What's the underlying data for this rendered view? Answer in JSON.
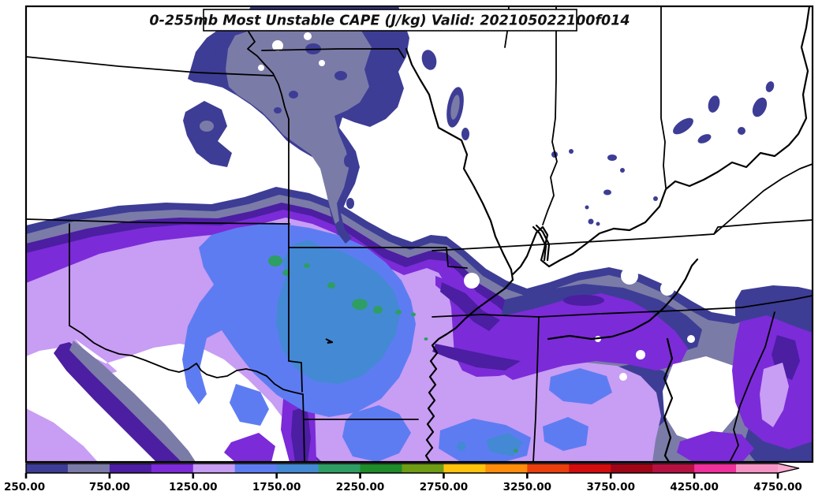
{
  "title": {
    "text": "0-255mb Most Unstable CAPE (J/kg) Valid: 202105022100f014"
  },
  "map": {
    "background_color": "#ffffff",
    "frame_color": "#000000",
    "border_color": "#000000"
  },
  "colorbar": {
    "orientation": "horizontal",
    "position": "bottom",
    "tick_labels": [
      "250.00",
      "750.00",
      "1250.00",
      "1750.00",
      "2250.00",
      "2750.00",
      "3250.00",
      "3750.00",
      "4250.00",
      "4750.00"
    ],
    "tick_values": [
      250,
      750,
      1250,
      1750,
      2250,
      2750,
      3250,
      3750,
      4250,
      4750
    ],
    "arrow_color": "#FAA9D0",
    "levels": [
      {
        "from": 250,
        "to": 500,
        "color": "#3D3D96"
      },
      {
        "from": 500,
        "to": 750,
        "color": "#7B7BA8"
      },
      {
        "from": 750,
        "to": 1000,
        "color": "#4C1EA2"
      },
      {
        "from": 1000,
        "to": 1250,
        "color": "#7C2BD8"
      },
      {
        "from": 1250,
        "to": 1500,
        "color": "#C89DF4"
      },
      {
        "from": 1500,
        "to": 1750,
        "color": "#5E7CF2"
      },
      {
        "from": 1750,
        "to": 2000,
        "color": "#4489D4"
      },
      {
        "from": 2000,
        "to": 2250,
        "color": "#2E9E64"
      },
      {
        "from": 2250,
        "to": 2500,
        "color": "#1F8B2A"
      },
      {
        "from": 2500,
        "to": 2750,
        "color": "#6F9C15"
      },
      {
        "from": 2750,
        "to": 3000,
        "color": "#FFC20D"
      },
      {
        "from": 3000,
        "to": 3250,
        "color": "#FF8D0B"
      },
      {
        "from": 3250,
        "to": 3500,
        "color": "#EB3F0E"
      },
      {
        "from": 3500,
        "to": 3750,
        "color": "#D30D0D"
      },
      {
        "from": 3750,
        "to": 4000,
        "color": "#9E0617"
      },
      {
        "from": 4000,
        "to": 4250,
        "color": "#B51242"
      },
      {
        "from": 4250,
        "to": 4500,
        "color": "#F0309B"
      },
      {
        "from": 4500,
        "to": 4750,
        "color": "#F794C6"
      }
    ]
  },
  "chart_data": {
    "type": "heatmap",
    "subtype": "filled-contour-weather-map",
    "title": "0-255mb Most Unstable CAPE (J/kg) Valid: 202105022100f014",
    "parameter": "0-255mb Most Unstable CAPE",
    "units": "J/kg",
    "valid_stamp": "202105022100f014",
    "legend_position": "bottom",
    "contour_interval": 250,
    "scale_min": 250,
    "scale_max": 4750,
    "colorbar_ticks": [
      250,
      750,
      1250,
      1750,
      2250,
      2750,
      3250,
      3750,
      4250,
      4750
    ],
    "max_visible_value_bin": "2000-2250",
    "level_colors": [
      "#3D3D96",
      "#7B7BA8",
      "#4C1EA2",
      "#7C2BD8",
      "#C89DF4",
      "#5E7CF2",
      "#4489D4",
      "#2E9E64",
      "#1F8B2A",
      "#6F9C15",
      "#FFC20D",
      "#FF8D0B",
      "#EB3F0E",
      "#D30D0D",
      "#9E0617",
      "#B51242",
      "#F0309B",
      "#F794C6"
    ]
  }
}
